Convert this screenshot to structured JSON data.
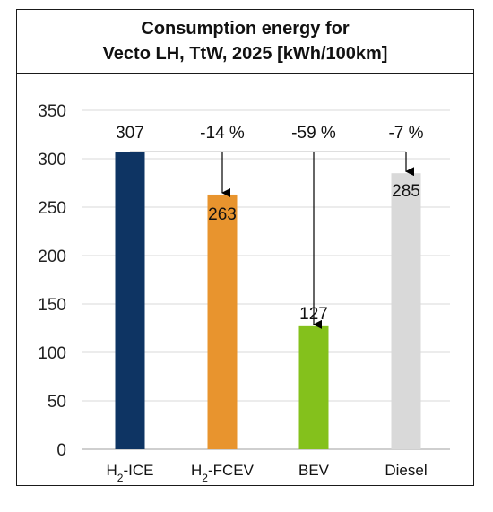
{
  "chart_data": {
    "type": "bar",
    "title_lines": [
      "Consumption energy for",
      "Vecto LH, TtW, 2025 [kWh/100km]"
    ],
    "categories": [
      {
        "main": "H",
        "sub": "2",
        "rest": "-ICE"
      },
      {
        "main": "H",
        "sub": "2",
        "rest": "-FCEV"
      },
      {
        "main": "BEV",
        "sub": "",
        "rest": ""
      },
      {
        "main": "Diesel",
        "sub": "",
        "rest": ""
      }
    ],
    "values": [
      307,
      263,
      127,
      285
    ],
    "value_labels": [
      "307",
      "263",
      "127",
      "285"
    ],
    "change_labels": [
      "",
      "-14 %",
      "-59 %",
      "-7 %"
    ],
    "colors": [
      "#0e3463",
      "#e8942e",
      "#84c11c",
      "#d9d9d9"
    ],
    "ylim": [
      0,
      350
    ],
    "yticks": [
      0,
      50,
      100,
      150,
      200,
      250,
      300,
      350
    ],
    "grid": true,
    "xlabel": "",
    "ylabel": ""
  }
}
